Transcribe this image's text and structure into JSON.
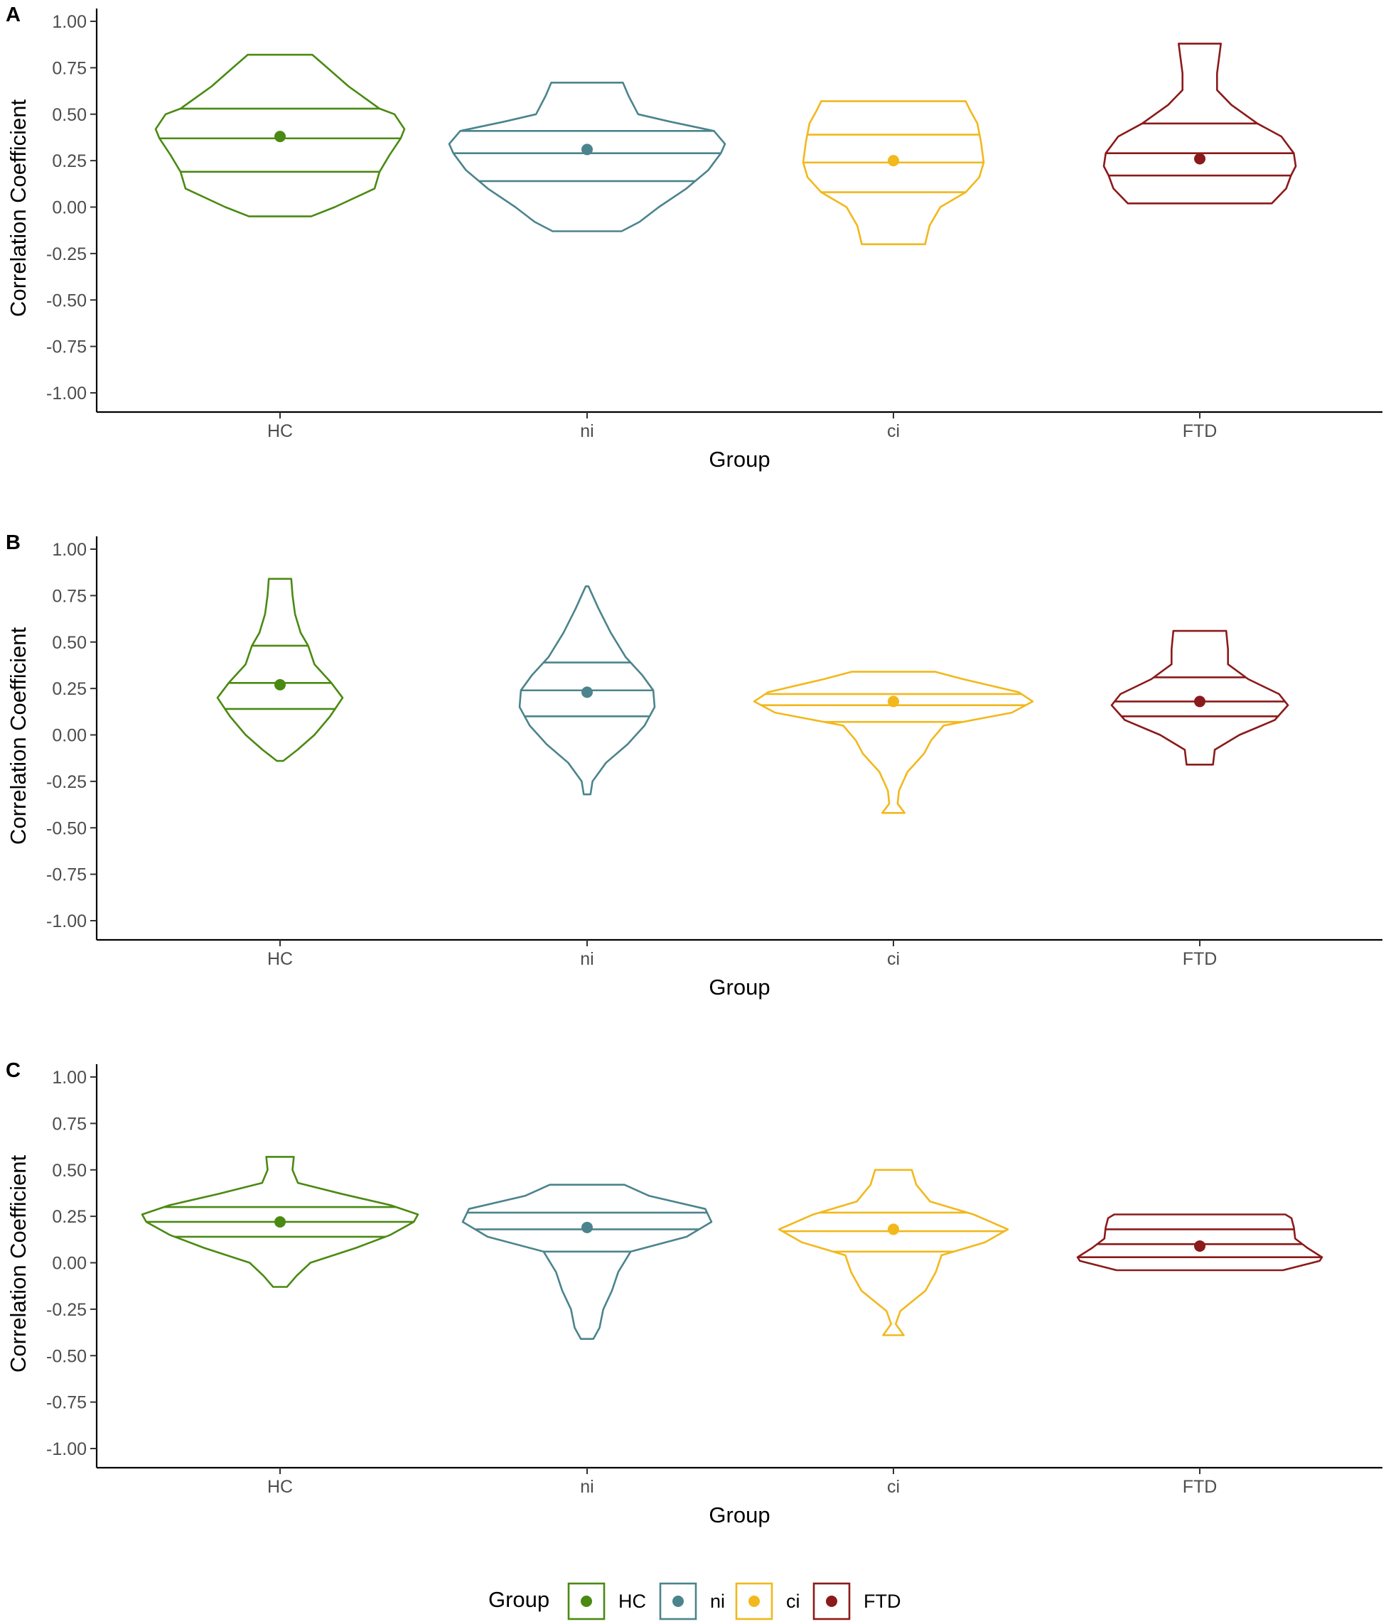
{
  "chart_data": [
    {
      "panel": "A",
      "type": "violin",
      "xlabel": "Group",
      "ylabel": "Correlation Coefficient",
      "ylim": [
        -1.0,
        1.0
      ],
      "yticks": [
        "1.00",
        "0.75",
        "0.50",
        "0.25",
        "0.00",
        "-0.25",
        "-0.50",
        "-0.75",
        "-1.00"
      ],
      "categories": [
        "HC",
        "ni",
        "ci",
        "FTD"
      ],
      "violins": [
        {
          "group": "HC",
          "mean": 0.38,
          "quantiles": [
            0.19,
            0.37,
            0.53
          ],
          "profile": [
            [
              -0.05,
              0.25
            ],
            [
              0.0,
              0.44
            ],
            [
              0.1,
              0.76
            ],
            [
              0.19,
              0.8
            ],
            [
              0.28,
              0.88
            ],
            [
              0.37,
              0.97
            ],
            [
              0.42,
              1.0
            ],
            [
              0.5,
              0.92
            ],
            [
              0.53,
              0.8
            ],
            [
              0.65,
              0.55
            ],
            [
              0.75,
              0.38
            ],
            [
              0.82,
              0.26
            ]
          ]
        },
        {
          "group": "ni",
          "mean": 0.31,
          "quantiles": [
            0.14,
            0.29,
            0.41
          ],
          "profile": [
            [
              -0.13,
              0.25
            ],
            [
              -0.08,
              0.38
            ],
            [
              0.0,
              0.52
            ],
            [
              0.1,
              0.72
            ],
            [
              0.2,
              0.88
            ],
            [
              0.29,
              0.97
            ],
            [
              0.34,
              1.0
            ],
            [
              0.41,
              0.92
            ],
            [
              0.46,
              0.6
            ],
            [
              0.5,
              0.37
            ],
            [
              0.6,
              0.3
            ],
            [
              0.67,
              0.26
            ]
          ]
        },
        {
          "group": "ci",
          "mean": 0.25,
          "quantiles": [
            0.08,
            0.24,
            0.39
          ],
          "profile": [
            [
              -0.2,
              0.35
            ],
            [
              -0.1,
              0.4
            ],
            [
              0.0,
              0.52
            ],
            [
              0.08,
              0.8
            ],
            [
              0.16,
              0.95
            ],
            [
              0.24,
              1.0
            ],
            [
              0.35,
              0.97
            ],
            [
              0.45,
              0.93
            ],
            [
              0.52,
              0.85
            ],
            [
              0.57,
              0.8
            ]
          ]
        },
        {
          "group": "FTD",
          "mean": 0.26,
          "quantiles": [
            0.17,
            0.29,
            0.45
          ],
          "profile": [
            [
              0.02,
              0.75
            ],
            [
              0.1,
              0.9
            ],
            [
              0.17,
              0.95
            ],
            [
              0.22,
              1.0
            ],
            [
              0.29,
              0.98
            ],
            [
              0.38,
              0.85
            ],
            [
              0.45,
              0.6
            ],
            [
              0.55,
              0.33
            ],
            [
              0.63,
              0.18
            ],
            [
              0.72,
              0.18
            ],
            [
              0.8,
              0.2
            ],
            [
              0.88,
              0.22
            ]
          ]
        }
      ]
    },
    {
      "panel": "B",
      "type": "violin",
      "xlabel": "Group",
      "ylabel": "Correlation Coefficient",
      "ylim": [
        -1.0,
        1.0
      ],
      "yticks": [
        "1.00",
        "0.75",
        "0.50",
        "0.25",
        "0.00",
        "-0.25",
        "-0.50",
        "-0.75",
        "-1.00"
      ],
      "categories": [
        "HC",
        "ni",
        "ci",
        "FTD"
      ],
      "violins": [
        {
          "group": "HC",
          "mean": 0.27,
          "quantiles": [
            0.14,
            0.28,
            0.48
          ],
          "profile": [
            [
              -0.14,
              0.05
            ],
            [
              -0.08,
              0.28
            ],
            [
              0.0,
              0.55
            ],
            [
              0.1,
              0.8
            ],
            [
              0.2,
              1.0
            ],
            [
              0.28,
              0.82
            ],
            [
              0.38,
              0.55
            ],
            [
              0.48,
              0.45
            ],
            [
              0.55,
              0.33
            ],
            [
              0.65,
              0.24
            ],
            [
              0.75,
              0.2
            ],
            [
              0.84,
              0.18
            ]
          ]
        },
        {
          "group": "ni",
          "mean": 0.23,
          "quantiles": [
            0.1,
            0.24,
            0.39
          ],
          "profile": [
            [
              -0.32,
              0.05
            ],
            [
              -0.25,
              0.08
            ],
            [
              -0.15,
              0.28
            ],
            [
              -0.05,
              0.6
            ],
            [
              0.05,
              0.85
            ],
            [
              0.15,
              1.0
            ],
            [
              0.24,
              0.98
            ],
            [
              0.32,
              0.82
            ],
            [
              0.42,
              0.57
            ],
            [
              0.55,
              0.35
            ],
            [
              0.68,
              0.17
            ],
            [
              0.8,
              0.02
            ]
          ]
        },
        {
          "group": "ci",
          "mean": 0.18,
          "quantiles": [
            0.07,
            0.16,
            0.22
          ],
          "profile": [
            [
              -0.42,
              0.08
            ],
            [
              -0.37,
              0.03
            ],
            [
              -0.3,
              0.04
            ],
            [
              -0.2,
              0.1
            ],
            [
              -0.1,
              0.22
            ],
            [
              -0.03,
              0.27
            ],
            [
              0.05,
              0.36
            ],
            [
              0.12,
              0.85
            ],
            [
              0.18,
              1.0
            ],
            [
              0.23,
              0.9
            ],
            [
              0.3,
              0.5
            ],
            [
              0.34,
              0.3
            ]
          ]
        },
        {
          "group": "FTD",
          "mean": 0.18,
          "quantiles": [
            0.1,
            0.18,
            0.31
          ],
          "profile": [
            [
              -0.16,
              0.15
            ],
            [
              -0.08,
              0.17
            ],
            [
              0.0,
              0.45
            ],
            [
              0.08,
              0.85
            ],
            [
              0.16,
              1.0
            ],
            [
              0.22,
              0.9
            ],
            [
              0.3,
              0.55
            ],
            [
              0.38,
              0.32
            ],
            [
              0.46,
              0.32
            ],
            [
              0.56,
              0.3
            ]
          ]
        }
      ]
    },
    {
      "panel": "C",
      "type": "violin",
      "xlabel": "Group",
      "ylabel": "Correlation Coefficient",
      "ylim": [
        -1.0,
        1.0
      ],
      "yticks": [
        "1.00",
        "0.75",
        "0.50",
        "0.25",
        "0.00",
        "-0.25",
        "-0.50",
        "-0.75",
        "-1.00"
      ],
      "categories": [
        "HC",
        "ni",
        "ci",
        "FTD"
      ],
      "violins": [
        {
          "group": "HC",
          "mean": 0.22,
          "quantiles": [
            0.14,
            0.22,
            0.3
          ],
          "profile": [
            [
              -0.13,
              0.05
            ],
            [
              -0.07,
              0.12
            ],
            [
              0.0,
              0.22
            ],
            [
              0.08,
              0.55
            ],
            [
              0.15,
              0.8
            ],
            [
              0.22,
              0.97
            ],
            [
              0.26,
              1.0
            ],
            [
              0.31,
              0.8
            ],
            [
              0.37,
              0.45
            ],
            [
              0.43,
              0.13
            ],
            [
              0.5,
              0.09
            ],
            [
              0.57,
              0.1
            ]
          ]
        },
        {
          "group": "ni",
          "mean": 0.19,
          "quantiles": [
            0.06,
            0.18,
            0.27
          ],
          "profile": [
            [
              -0.41,
              0.05
            ],
            [
              -0.35,
              0.1
            ],
            [
              -0.25,
              0.13
            ],
            [
              -0.15,
              0.2
            ],
            [
              -0.05,
              0.25
            ],
            [
              0.06,
              0.35
            ],
            [
              0.14,
              0.8
            ],
            [
              0.22,
              1.0
            ],
            [
              0.29,
              0.95
            ],
            [
              0.36,
              0.5
            ],
            [
              0.42,
              0.3
            ]
          ]
        },
        {
          "group": "ci",
          "mean": 0.18,
          "quantiles": [
            0.06,
            0.17,
            0.27
          ],
          "profile": [
            [
              -0.39,
              0.09
            ],
            [
              -0.33,
              0.02
            ],
            [
              -0.26,
              0.06
            ],
            [
              -0.15,
              0.28
            ],
            [
              -0.05,
              0.37
            ],
            [
              0.04,
              0.42
            ],
            [
              0.11,
              0.8
            ],
            [
              0.18,
              1.0
            ],
            [
              0.26,
              0.7
            ],
            [
              0.33,
              0.32
            ],
            [
              0.42,
              0.2
            ],
            [
              0.5,
              0.16
            ]
          ]
        },
        {
          "group": "FTD",
          "mean": 0.09,
          "quantiles": [
            0.03,
            0.1,
            0.18
          ],
          "profile": [
            [
              -0.04,
              0.68
            ],
            [
              0.01,
              0.98
            ],
            [
              0.03,
              1.0
            ],
            [
              0.08,
              0.88
            ],
            [
              0.13,
              0.78
            ],
            [
              0.19,
              0.77
            ],
            [
              0.24,
              0.75
            ],
            [
              0.26,
              0.7
            ]
          ]
        }
      ]
    }
  ],
  "legend": {
    "title": "Group",
    "placement": "bottom",
    "items": [
      {
        "label": "HC",
        "color": "#4a8a12"
      },
      {
        "label": "ni",
        "color": "#4b848c"
      },
      {
        "label": "ci",
        "color": "#f2b81c"
      },
      {
        "label": "FTD",
        "color": "#8b1a1a"
      }
    ]
  }
}
